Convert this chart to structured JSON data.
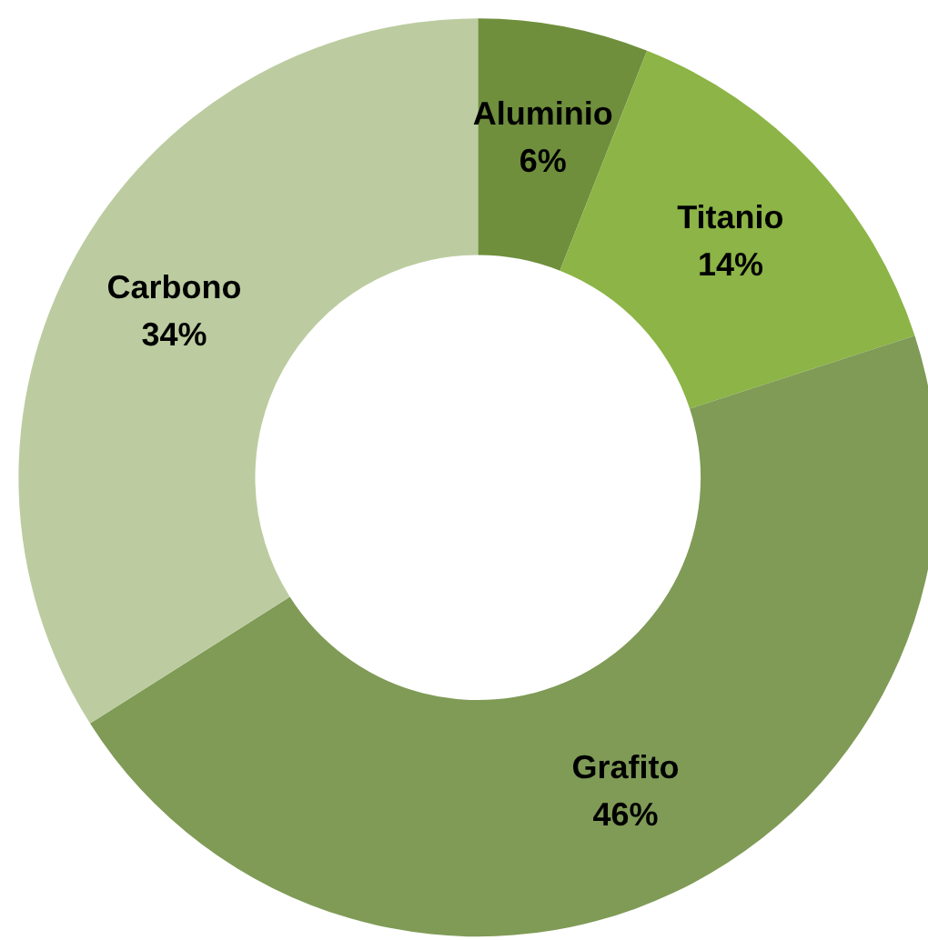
{
  "chart_data": {
    "type": "donut",
    "categories": [
      "Aluminio",
      "Titanio",
      "Grafito",
      "Carbono"
    ],
    "values": [
      6,
      14,
      46,
      34
    ],
    "value_labels": [
      "6%",
      "14%",
      "46%",
      "34%"
    ],
    "colors": [
      "#6f8f3c",
      "#8cb446",
      "#7f9b56",
      "#bccca0"
    ],
    "legend": false
  }
}
